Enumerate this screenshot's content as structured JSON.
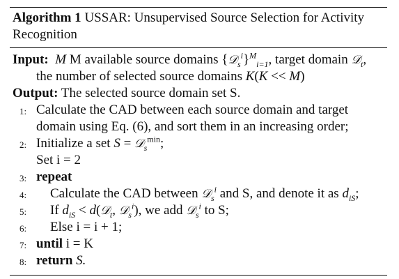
{
  "caption": {
    "label": "Algorithm 1",
    "title": "USSAR: Unsupervised Source Selection for Activity Recognition"
  },
  "input": {
    "keyword": "Input:",
    "line1_a": "M available source domains",
    "line1_b": "target domain",
    "line2": "the number of selected source domains"
  },
  "output": {
    "keyword": "Output:",
    "text": "The selected source domain set S."
  },
  "steps": [
    {
      "num": "1:",
      "text1": "Calculate the CAD between each source domain and target",
      "text2": "domain using Eq. (6), and sort them in an increasing order;"
    },
    {
      "num": "2:",
      "text1": "Initialize a set",
      "text2": "Set i = 2"
    },
    {
      "num": "3:",
      "text1": "repeat"
    },
    {
      "num": "4:",
      "text1": "Calculate the CAD between",
      "text2": "and S, and denote it as"
    },
    {
      "num": "5:",
      "text1": "If",
      "text2": "we add",
      "text3": "to S;"
    },
    {
      "num": "6:",
      "text1": "Else i = i + 1;"
    },
    {
      "num": "7:",
      "text1": "until",
      "text2": "i = K"
    },
    {
      "num": "8:",
      "text1": "return",
      "text2": "S."
    }
  ]
}
